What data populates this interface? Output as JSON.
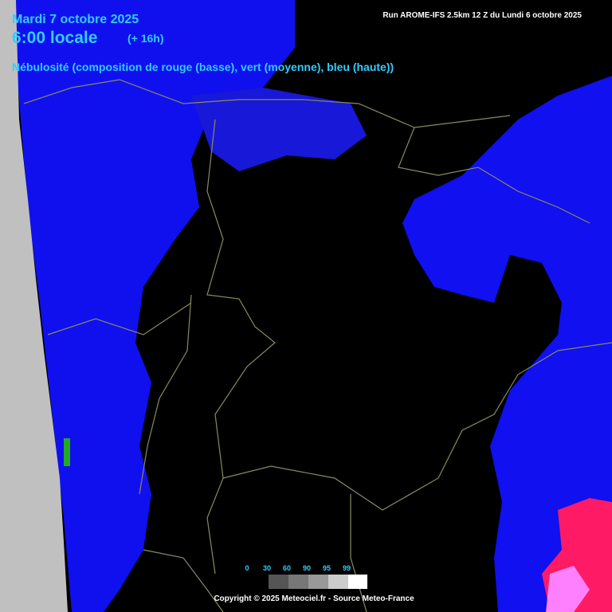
{
  "header": {
    "date": "Mardi 7 octobre 2025",
    "time": "6:00 locale",
    "offset": "(+ 16h)",
    "run": "Run AROME-IFS 2.5km 12 Z du Lundi 6 octobre 2025",
    "subtitle": "Nébulosité (composition de rouge (basse), vert (moyenne), bleu (haute))"
  },
  "legend": {
    "labels": [
      "0",
      "30",
      "60",
      "90",
      "95",
      "99"
    ]
  },
  "footer": {
    "copyright": "Copyright © 2025 Meteociel.fr - Source Meteo-France"
  }
}
